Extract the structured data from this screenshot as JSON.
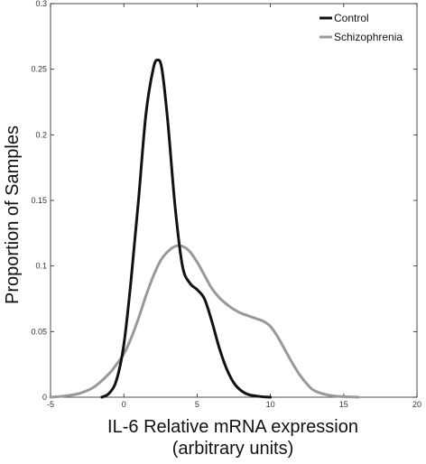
{
  "chart_data": {
    "type": "line",
    "xlabel_line1": "IL-6 Relative mRNA expression",
    "xlabel_line2": "(arbitrary units)",
    "ylabel": "Proportion of Samples",
    "xlim": [
      -5,
      20
    ],
    "ylim": [
      0,
      0.3
    ],
    "xticks": [
      -5,
      0,
      5,
      10,
      15,
      20
    ],
    "xtick_labels": [
      "-5",
      "0",
      "5",
      "10",
      "15",
      "20"
    ],
    "yticks": [
      0,
      0.05,
      0.1,
      0.15,
      0.2,
      0.25,
      0.3
    ],
    "ytick_labels": [
      "0",
      "0.05",
      "0.1",
      "0.15",
      "0.2",
      "0.25",
      "0.3"
    ],
    "grid": false,
    "legend_position": "top-right",
    "series": [
      {
        "name": "Control",
        "color": "#111111",
        "x": [
          -1.5,
          -1.0,
          -0.5,
          0,
          0.5,
          1.0,
          1.5,
          2.0,
          2.3,
          2.6,
          3.0,
          3.5,
          4.0,
          4.5,
          5.0,
          5.5,
          6.0,
          6.5,
          7.0,
          7.5,
          8.0,
          8.5,
          9.0,
          9.5,
          10.0
        ],
        "y": [
          0,
          0.003,
          0.013,
          0.04,
          0.09,
          0.15,
          0.215,
          0.25,
          0.257,
          0.25,
          0.21,
          0.145,
          0.1,
          0.087,
          0.082,
          0.075,
          0.058,
          0.038,
          0.022,
          0.011,
          0.005,
          0.002,
          0.001,
          0.0003,
          0
        ]
      },
      {
        "name": "Schizophrenia",
        "color": "#999999",
        "x": [
          -5,
          -4,
          -3,
          -2,
          -1,
          -0.5,
          0,
          0.5,
          1,
          1.5,
          2,
          2.5,
          3,
          3.5,
          4,
          4.5,
          5,
          5.5,
          6,
          6.5,
          7,
          7.5,
          8,
          8.5,
          9,
          9.5,
          10,
          10.5,
          11,
          11.5,
          12,
          12.5,
          13,
          14,
          15,
          16
        ],
        "y": [
          0,
          0.001,
          0.003,
          0.008,
          0.018,
          0.025,
          0.033,
          0.045,
          0.06,
          0.077,
          0.092,
          0.104,
          0.111,
          0.115,
          0.115,
          0.111,
          0.103,
          0.093,
          0.083,
          0.076,
          0.071,
          0.067,
          0.064,
          0.062,
          0.06,
          0.058,
          0.054,
          0.046,
          0.036,
          0.026,
          0.017,
          0.01,
          0.005,
          0.0015,
          0.0004,
          0
        ]
      }
    ]
  }
}
